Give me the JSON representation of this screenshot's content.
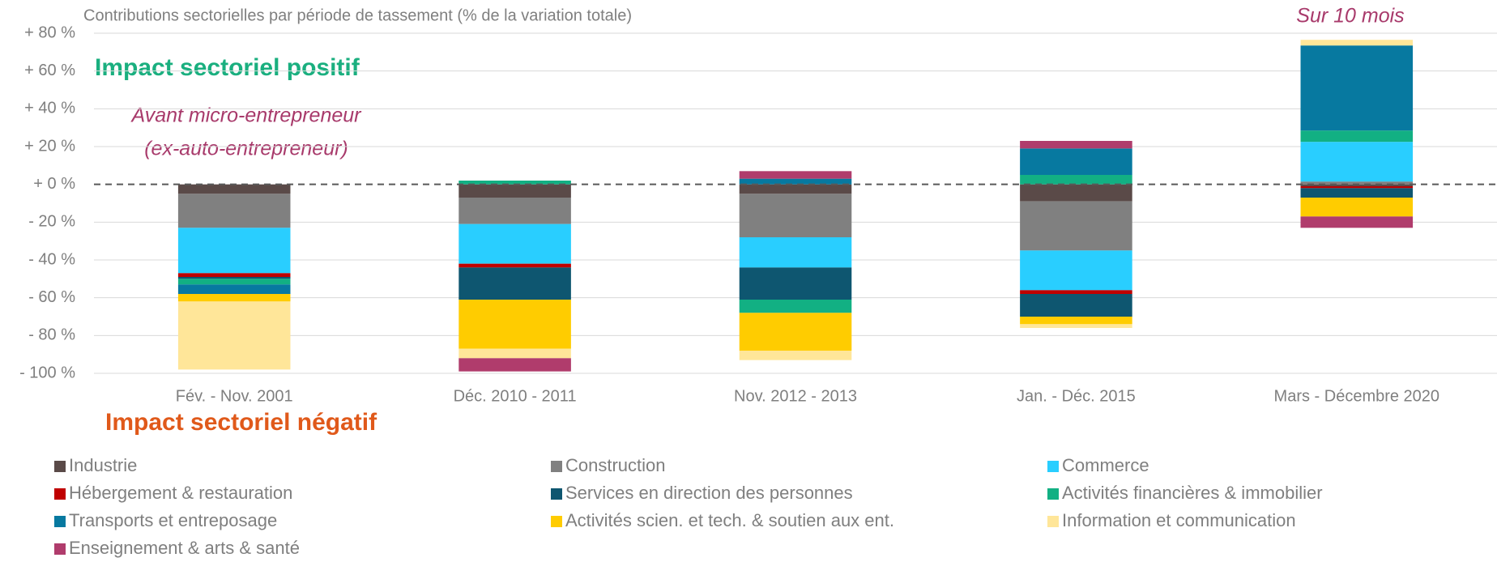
{
  "chart_data": {
    "type": "stacked_bar",
    "title": "Contributions sectorielles par période de tassement (% de la variation totale)",
    "annotations": [
      "Impact sectoriel positif",
      "Impact sectoriel négatif",
      "Avant micro-entrepreneur",
      "(ex-auto-entrepreneur)",
      "Sur 10 mois"
    ],
    "categories": [
      "Fév. - Nov. 2001",
      "Déc. 2010 - 2011",
      "Nov. 2012 - 2013",
      "Jan. - Déc. 2015",
      "Mars - Décembre 2020"
    ],
    "series": [
      {
        "name": "Industrie",
        "color": "#5a4a48",
        "values": [
          -5,
          -7,
          -5,
          -9,
          -1
        ]
      },
      {
        "name": "Construction",
        "color": "#808080",
        "values": [
          -18,
          -14,
          -23,
          -26,
          1.5
        ]
      },
      {
        "name": "Commerce",
        "color": "#29ceff",
        "values": [
          -24,
          -21,
          -16,
          -21,
          21
        ]
      },
      {
        "name": "Hébergement & restauration",
        "color": "#c00000",
        "values": [
          -2,
          -2,
          0,
          -2,
          -1
        ]
      },
      {
        "name": "Services en direction des personnes",
        "color": "#0e5670",
        "values": [
          -1,
          -17,
          -17,
          -12,
          -5
        ]
      },
      {
        "name": "Activités financières & immobilier",
        "color": "#12b083",
        "values": [
          -3,
          2,
          -7,
          5,
          6
        ]
      },
      {
        "name": "Transports et entreposage",
        "color": "#0779a0",
        "values": [
          -5,
          0,
          3,
          14,
          45
        ]
      },
      {
        "name": "Activités scien. et tech. & soutien aux ent.",
        "color": "#ffcc00",
        "values": [
          -4,
          -26,
          -20,
          -4,
          -10
        ]
      },
      {
        "name": "Information et communication",
        "color": "#ffe699",
        "values": [
          -36,
          -5,
          -5,
          -2,
          3
        ]
      },
      {
        "name": "Enseignement & arts & santé",
        "color": "#b03c6c",
        "values": [
          0,
          -7,
          4,
          4,
          -6
        ]
      }
    ],
    "ylim": [
      -100,
      80
    ],
    "yticks": [
      {
        "value": 80,
        "label": "+ 80 %"
      },
      {
        "value": 60,
        "label": "+ 60 %"
      },
      {
        "value": 40,
        "label": "+ 40 %"
      },
      {
        "value": 20,
        "label": "+ 20 %"
      },
      {
        "value": 0,
        "label": "+ 0 %"
      },
      {
        "value": -20,
        "label": "- 20 %"
      },
      {
        "value": -40,
        "label": "- 40 %"
      },
      {
        "value": -60,
        "label": "- 60 %"
      },
      {
        "value": -80,
        "label": "- 80 %"
      },
      {
        "value": -100,
        "label": "- 100 %"
      }
    ],
    "grid": true
  }
}
